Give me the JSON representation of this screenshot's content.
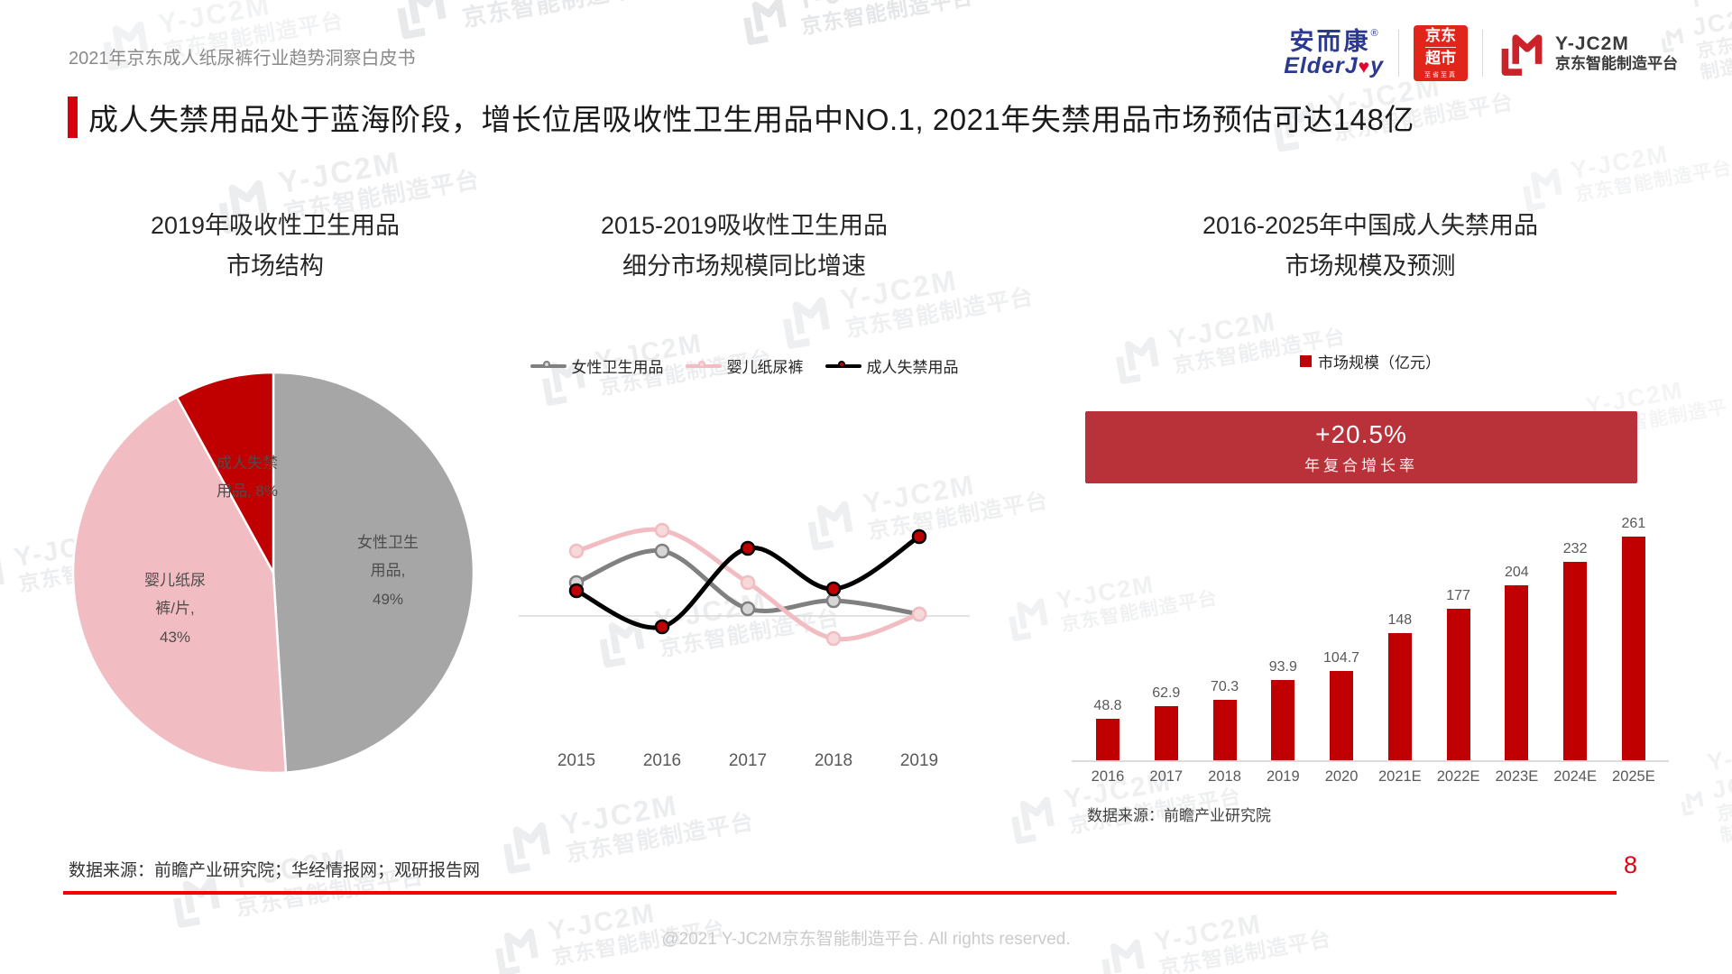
{
  "page": {
    "header_title": "2021年京东成人纸尿裤行业趋势洞察白皮书",
    "main_title": "成人失禁用品处于蓝海阶段，增长位居吸收性卫生用品中NO.1, 2021年失禁用品市场预估可达148亿",
    "footer_source": "数据来源：前瞻产业研究院；华经情报网；观研报告网",
    "page_number": "8",
    "copyright": "@2021 Y-JC2M京东智能制造平台. All rights reserved."
  },
  "logos": {
    "elderjoy_cn": "安而康",
    "elderjoy_reg": "®",
    "elderjoy_en_pre": "ElderJ",
    "elderjoy_en_post": "y",
    "jd_line1": "京东",
    "jd_line2": "超市",
    "jd_sub": "至省至真",
    "yjc2m_name": "Y-JC2M",
    "yjc2m_sub": "京东智能制造平台"
  },
  "watermark": {
    "line1": "Y-JC2M",
    "line2": "京东智能制造平台"
  },
  "colors": {
    "accent_red": "#D7000F",
    "bar_red": "#C00000",
    "banner_red": "#B93239",
    "pie_gray": "#A6A6A6",
    "pie_pink": "#F2BDC2",
    "pie_red": "#C00000",
    "footer_line_red": "#F40000"
  },
  "chart_data": [
    {
      "type": "pie",
      "title": "2019年吸收性卫生用品市场结构",
      "title_lines": [
        "2019年吸收性卫生用品",
        "市场结构"
      ],
      "start_angle_deg": 0,
      "direction": "clockwise",
      "slices": [
        {
          "label": "女性卫生用品",
          "value": 49,
          "color": "#A6A6A6",
          "label_lines": [
            "女性卫生",
            "用品,",
            "49%"
          ]
        },
        {
          "label": "婴儿纸尿裤/片",
          "value": 43,
          "color": "#F2BDC2",
          "label_lines": [
            "婴儿纸尿",
            "裤/片,",
            "43%"
          ]
        },
        {
          "label": "成人失禁用品",
          "value": 8,
          "color": "#C00000",
          "label_lines": [
            "成人失禁",
            "用品, 8%"
          ]
        }
      ]
    },
    {
      "type": "line",
      "title": "2015-2019吸收性卫生用品细分市场规模同比增速",
      "title_lines": [
        "2015-2019吸收性卫生用品",
        "细分市场规模同比增速"
      ],
      "x": [
        "2015",
        "2016",
        "2017",
        "2018",
        "2019"
      ],
      "y_axis_note": "y axis unlabeled; values estimated from curve positions (YoY growth, relative units)",
      "series": [
        {
          "name": "女性卫生用品",
          "color": "#808080",
          "marker_fill": "#D6D6D6",
          "values": [
            3.7,
            7.2,
            0.8,
            1.7,
            0.2
          ]
        },
        {
          "name": "婴儿纸尿裤",
          "color": "#F2BDC2",
          "marker_fill": "#F7D9DC",
          "values": [
            7.2,
            9.5,
            3.7,
            -2.5,
            0.2
          ]
        },
        {
          "name": "成人失禁用品",
          "color": "#000000",
          "marker_fill": "#C00000",
          "values": [
            2.8,
            -1.2,
            7.5,
            3.0,
            8.8
          ]
        }
      ]
    },
    {
      "type": "bar",
      "title": "2016-2025年中国成人失禁用品市场规模及预测",
      "title_lines": [
        "2016-2025年中国成人失禁用品",
        "市场规模及预测"
      ],
      "legend": "市场规模（亿元）",
      "banner": {
        "headline": "+20.5%",
        "subline": "年复合增长率",
        "color": "#B93239"
      },
      "categories": [
        "2016",
        "2017",
        "2018",
        "2019",
        "2020",
        "2021E",
        "2022E",
        "2023E",
        "2024E",
        "2025E"
      ],
      "values": [
        48.8,
        62.9,
        70.3,
        93.9,
        104.7,
        148,
        177,
        204,
        232,
        261
      ],
      "bar_color": "#C00000",
      "source": "数据来源：前瞻产业研究院"
    }
  ]
}
